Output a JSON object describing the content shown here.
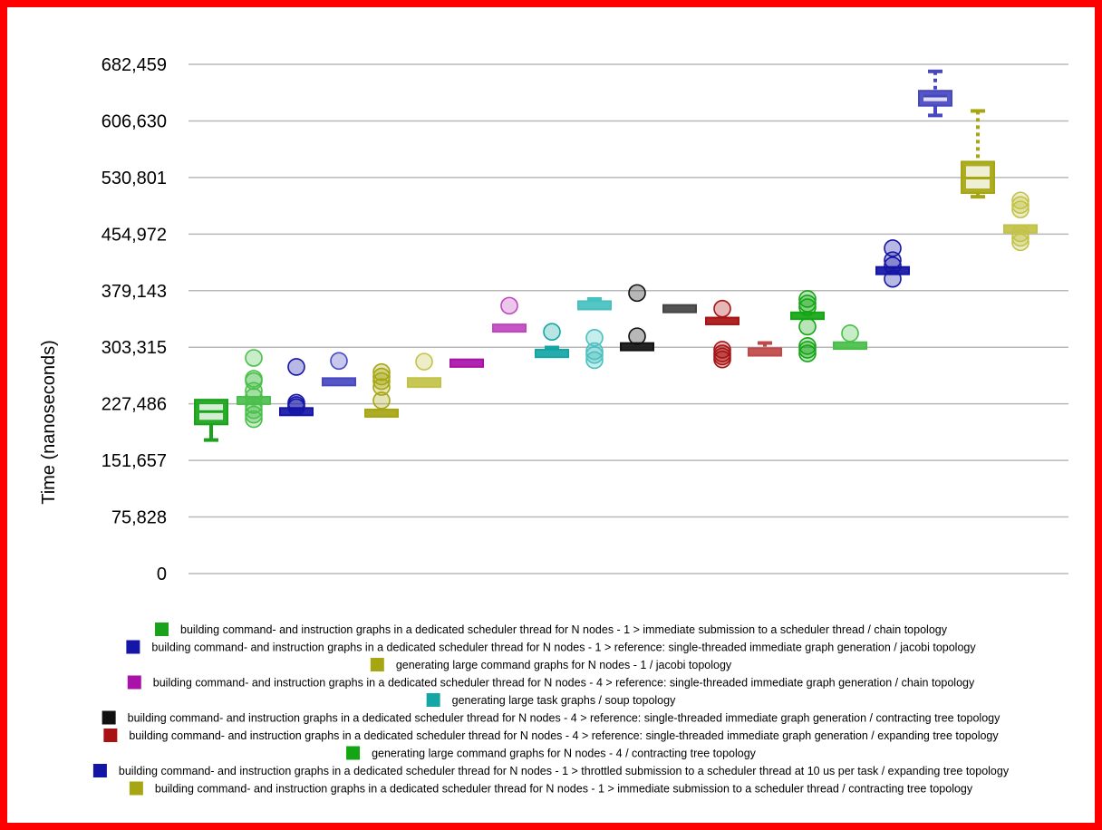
{
  "chart_data": {
    "type": "boxplot",
    "ylabel": "Time (nanoseconds)",
    "ylim": [
      0,
      682459
    ],
    "yticks": [
      "0",
      "75,828",
      "151,657",
      "227,486",
      "303,315",
      "379,143",
      "454,972",
      "530,801",
      "606,630",
      "682,459"
    ],
    "grid": true,
    "legend_position": "bottom",
    "series": [
      {
        "name": "building command- and instruction graphs in a dedicated scheduler thread for N nodes - 1 > immediate submission to a scheduler thread / chain topology",
        "color": "#1aa31a",
        "min": 179000,
        "q1": 200000,
        "median": 217000,
        "q3": 233000,
        "max": 233000,
        "outliers": []
      },
      {
        "name": "",
        "color": "#4bbf4b",
        "min": 230000,
        "q1": 230000,
        "median": 232000,
        "q3": 236000,
        "max": 236000,
        "outliers": [
          207000,
          213000,
          219000,
          226000,
          237000,
          245000,
          258000,
          261000,
          289000
        ]
      },
      {
        "name": "building command- and instruction graphs in a dedicated scheduler thread for N nodes - 1 > reference: single-threaded immediate graph generation / jacobi topology",
        "color": "#1515a8",
        "min": 214000,
        "q1": 214000,
        "median": 217000,
        "q3": 220000,
        "max": 220000,
        "outliers": [
          223000,
          226000,
          229000,
          277000
        ]
      },
      {
        "name": "",
        "color": "#4848c2",
        "min": 254000,
        "q1": 254000,
        "median": 257000,
        "q3": 262000,
        "max": 262000,
        "outliers": [
          285000
        ]
      },
      {
        "name": "generating large command graphs for N nodes - 1 / jacobi topology",
        "color": "#a6a612",
        "min": 212000,
        "q1": 212000,
        "median": 215000,
        "q3": 219000,
        "max": 219000,
        "outliers": [
          232000,
          250000,
          258000,
          264000,
          270000
        ]
      },
      {
        "name": "",
        "color": "#c2c248",
        "min": 250000,
        "q1": 250000,
        "median": 255000,
        "q3": 262000,
        "max": 262000,
        "outliers": [
          284000
        ]
      },
      {
        "name": "building command- and instruction graphs in a dedicated scheduler thread for N nodes - 4 > reference: single-threaded immediate graph generation / chain topology",
        "color": "#a812a8",
        "min": 277000,
        "q1": 277000,
        "median": 281000,
        "q3": 287000,
        "max": 287000,
        "outliers": []
      },
      {
        "name": "",
        "color": "#c046c0",
        "min": 325000,
        "q1": 325000,
        "median": 329000,
        "q3": 333000,
        "max": 333000,
        "outliers": [
          359000
        ]
      },
      {
        "name": "generating large task graphs / soup topology",
        "color": "#14a5a5",
        "min": 290000,
        "q1": 290000,
        "median": 294000,
        "q3": 300000,
        "max": 303000,
        "outliers": [
          324000
        ]
      },
      {
        "name": "",
        "color": "#48c0c0",
        "min": 354000,
        "q1": 354000,
        "median": 359000,
        "q3": 365000,
        "max": 368000,
        "outliers": [
          286000,
          293000,
          298000,
          316000
        ]
      },
      {
        "name": "building command- and instruction graphs in a dedicated scheduler thread for N nodes - 4 > reference: single-threaded immediate graph generation / contracting tree topology",
        "color": "#111111",
        "min": 300000,
        "q1": 300000,
        "median": 304000,
        "q3": 308000,
        "max": 308000,
        "outliers": [
          318000,
          376000
        ]
      },
      {
        "name": "",
        "color": "#444444",
        "min": 351000,
        "q1": 351000,
        "median": 355000,
        "q3": 359000,
        "max": 359000,
        "outliers": []
      },
      {
        "name": "building command- and instruction graphs in a dedicated scheduler thread for N nodes - 4 > reference: single-threaded immediate graph generation / expanding tree topology",
        "color": "#a81212",
        "min": 334000,
        "q1": 334000,
        "median": 338000,
        "q3": 343000,
        "max": 343000,
        "outliers": [
          287000,
          291000,
          295000,
          300000,
          355000
        ]
      },
      {
        "name": "",
        "color": "#c04848",
        "min": 292000,
        "q1": 292000,
        "median": 296000,
        "q3": 302000,
        "max": 309000,
        "outliers": []
      },
      {
        "name": "generating large command graphs for N nodes - 4 / contracting tree topology",
        "color": "#14a514",
        "min": 341000,
        "q1": 341000,
        "median": 345000,
        "q3": 350000,
        "max": 350000,
        "outliers": [
          295000,
          300000,
          305000,
          331000,
          357000,
          362000,
          368000
        ]
      },
      {
        "name": "",
        "color": "#48bf48",
        "min": 301000,
        "q1": 301000,
        "median": 305000,
        "q3": 310000,
        "max": 310000,
        "outliers": [
          322000
        ]
      },
      {
        "name": "building command- and instruction graphs in a dedicated scheduler thread for N nodes - 1 > throttled submission to a scheduler thread at 10 us per task / expanding tree topology",
        "color": "#1414a5",
        "min": 403000,
        "q1": 403000,
        "median": 406000,
        "q3": 410000,
        "max": 410000,
        "outliers": [
          395000,
          413000,
          420000,
          436000
        ]
      },
      {
        "name": "",
        "color": "#4747c0",
        "min": 614000,
        "q1": 627000,
        "median": 640000,
        "q3": 647000,
        "max": 673000,
        "outliers": []
      },
      {
        "name": "building command- and instruction graphs in a dedicated scheduler thread for N nodes - 1 > immediate submission to a scheduler thread / contracting tree topology",
        "color": "#a6a612",
        "min": 505000,
        "q1": 510000,
        "median": 530000,
        "q3": 552000,
        "max": 620000,
        "outliers": []
      },
      {
        "name": "",
        "color": "#c2c248",
        "min": 457000,
        "q1": 457000,
        "median": 461000,
        "q3": 467000,
        "max": 467000,
        "outliers": [
          444000,
          450000,
          456000,
          488000,
          494000,
          500000
        ]
      }
    ]
  }
}
